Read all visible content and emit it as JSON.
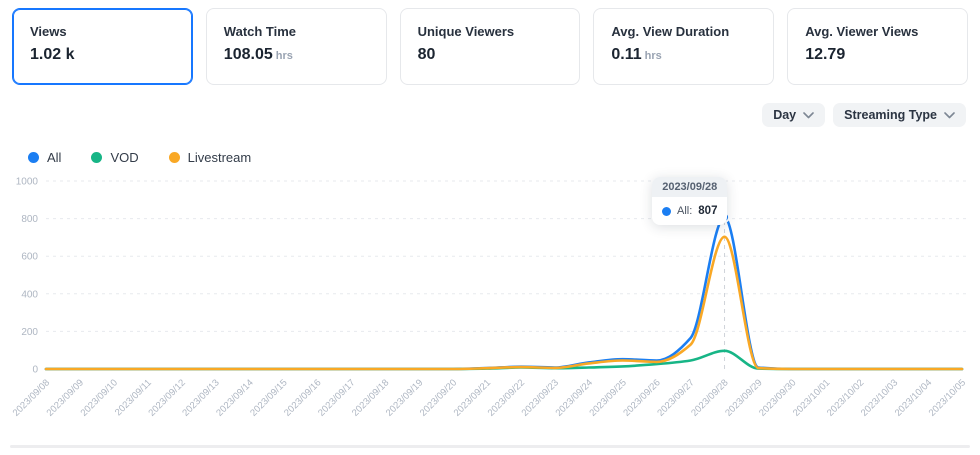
{
  "metrics": [
    {
      "label": "Views",
      "value": "1.02 k",
      "unit": "",
      "selected": true
    },
    {
      "label": "Watch Time",
      "value": "108.05",
      "unit": "hrs",
      "selected": false
    },
    {
      "label": "Unique Viewers",
      "value": "80",
      "unit": "",
      "selected": false
    },
    {
      "label": "Avg. View Duration",
      "value": "0.11",
      "unit": "hrs",
      "selected": false
    },
    {
      "label": "Avg. Viewer Views",
      "value": "12.79",
      "unit": "",
      "selected": false
    }
  ],
  "filters": {
    "interval_label": "Day",
    "type_label": "Streaming Type"
  },
  "legend": [
    {
      "label": "All",
      "color": "#1b7ef2"
    },
    {
      "label": "VOD",
      "color": "#17b586"
    },
    {
      "label": "Livestream",
      "color": "#f9a825"
    }
  ],
  "tooltip": {
    "date": "2023/09/28",
    "series_label": "All:",
    "value": "807",
    "color": "#1b7ef2"
  },
  "chart_data": {
    "type": "line",
    "x": [
      "2023/09/08",
      "2023/09/09",
      "2023/09/10",
      "2023/09/11",
      "2023/09/12",
      "2023/09/13",
      "2023/09/14",
      "2023/09/15",
      "2023/09/16",
      "2023/09/17",
      "2023/09/18",
      "2023/09/19",
      "2023/09/20",
      "2023/09/21",
      "2023/09/22",
      "2023/09/23",
      "2023/09/24",
      "2023/09/25",
      "2023/09/26",
      "2023/09/27",
      "2023/09/28",
      "2023/09/29",
      "2023/09/30",
      "2023/10/01",
      "2023/10/02",
      "2023/10/03",
      "2023/10/04",
      "2023/10/05"
    ],
    "series": [
      {
        "name": "All",
        "color": "#1b7ef2",
        "values": [
          0,
          0,
          0,
          0,
          0,
          0,
          0,
          0,
          0,
          0,
          0,
          0,
          0,
          5,
          12,
          8,
          35,
          52,
          45,
          165,
          807,
          8,
          0,
          0,
          0,
          0,
          0,
          0
        ]
      },
      {
        "name": "VOD",
        "color": "#17b586",
        "values": [
          0,
          0,
          0,
          0,
          0,
          0,
          0,
          0,
          0,
          0,
          0,
          0,
          0,
          2,
          8,
          4,
          8,
          14,
          26,
          45,
          97,
          2,
          0,
          0,
          0,
          0,
          0,
          0
        ]
      },
      {
        "name": "Livestream",
        "color": "#f9a825",
        "values": [
          0,
          0,
          0,
          0,
          0,
          0,
          0,
          0,
          0,
          0,
          0,
          0,
          0,
          4,
          10,
          6,
          30,
          45,
          38,
          130,
          703,
          5,
          0,
          0,
          0,
          0,
          0,
          0
        ]
      }
    ],
    "ylim": [
      0,
      1000
    ],
    "yticks": [
      0,
      200,
      400,
      600,
      800,
      1000
    ],
    "grid": "dashed-horizontal",
    "legend_position": "top-left",
    "highlight": {
      "x_index": 20,
      "series": "All",
      "value": 807,
      "date": "2023/09/28"
    },
    "axis_label_color": "#aeb6c2",
    "grid_color": "#e7eaee",
    "crosshair_color": "#cfd4da"
  }
}
